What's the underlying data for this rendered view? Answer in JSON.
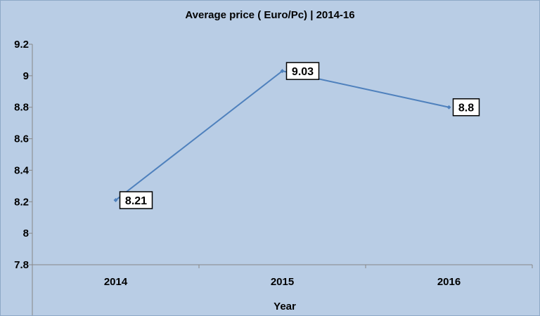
{
  "chart_data": {
    "type": "line",
    "title": "Average price ( Euro/Pc) | 2014-16",
    "xlabel": "Year",
    "ylabel": "",
    "categories": [
      "2014",
      "2015",
      "2016"
    ],
    "series": [
      {
        "values": [
          8.21,
          9.03,
          8.8
        ],
        "labels": [
          "8.21",
          "9.03",
          "8.8"
        ]
      }
    ],
    "ylim": [
      7.8,
      9.2
    ],
    "yticks": [
      "7.8",
      "8",
      "8.2",
      "8.4",
      "8.6",
      "8.8",
      "9",
      "9.2"
    ],
    "grid": false,
    "legend": "none",
    "colors": {
      "background": "#b9cde5",
      "line": "#4f81bd",
      "axis": "#888888",
      "label_box": "#ffffff"
    }
  }
}
